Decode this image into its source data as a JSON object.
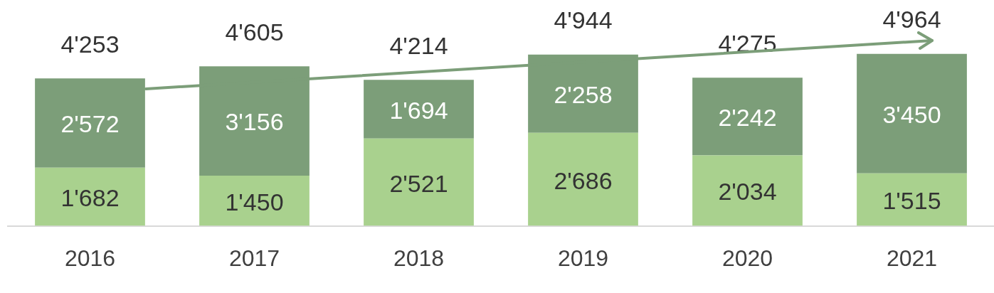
{
  "chart_data": {
    "type": "bar",
    "stacked": true,
    "categories": [
      "2016",
      "2017",
      "2018",
      "2019",
      "2020",
      "2021"
    ],
    "series": [
      {
        "color": "#a9d18e",
        "values": [
          1682,
          1450,
          2521,
          2686,
          2034,
          1515
        ],
        "value_labels": [
          "1'682",
          "1'450",
          "2'521",
          "2'686",
          "2'034",
          "1'515"
        ]
      },
      {
        "color": "#7c9e79",
        "values": [
          2572,
          3156,
          1694,
          2258,
          2242,
          3450
        ],
        "value_labels": [
          "2'572",
          "3'156",
          "1'694",
          "2'258",
          "2'242",
          "3'450"
        ]
      }
    ],
    "totals": [
      "4'253",
      "4'605",
      "4'214",
      "4'944",
      "4'275",
      "4'964"
    ],
    "tick_labels": "x",
    "grid": false,
    "legend": false
  }
}
